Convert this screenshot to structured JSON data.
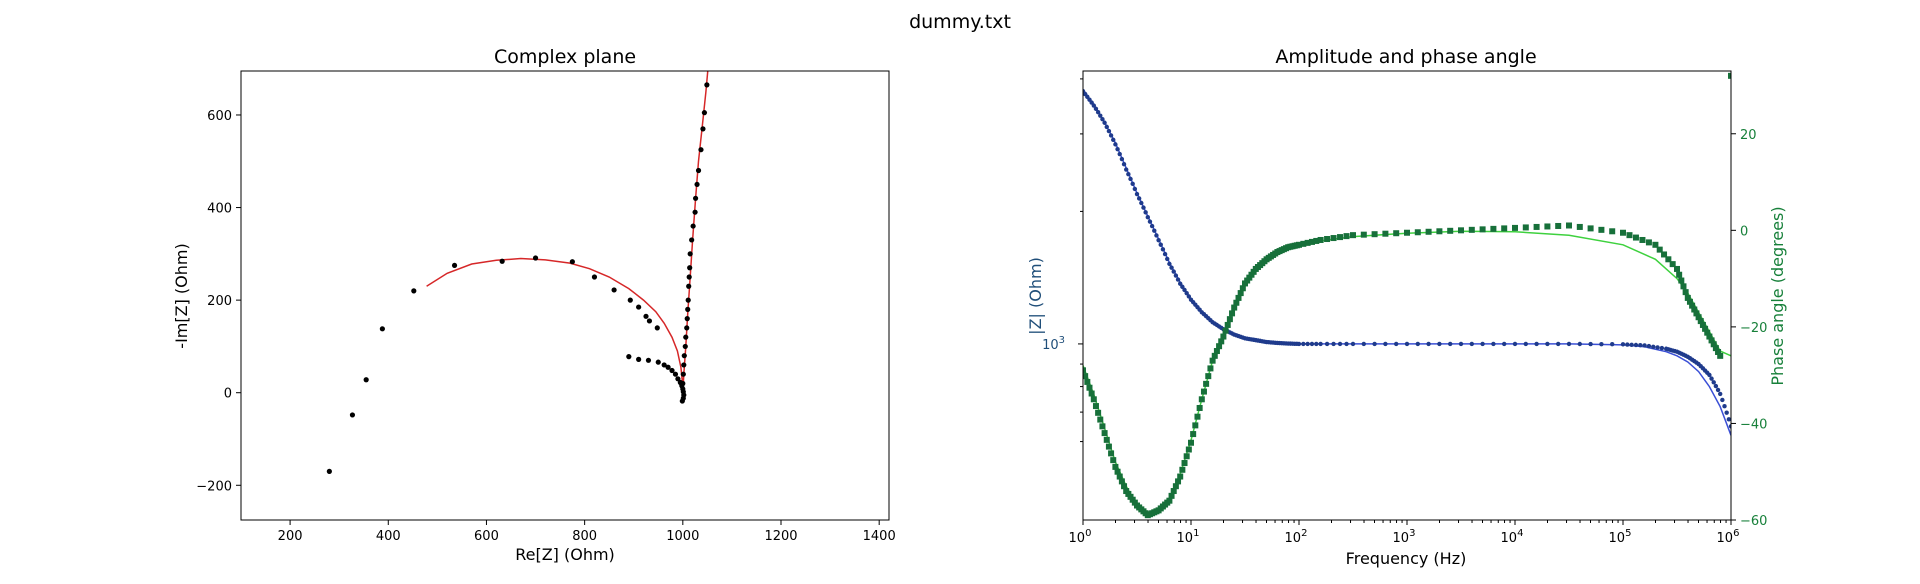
{
  "figure": {
    "suptitle": "dummy.txt"
  },
  "colors": {
    "data_points": "#000000",
    "fit_line": "#d62728",
    "amplitude_points": "#1f3b8c",
    "amplitude_line": "#3a4fd6",
    "amplitude_label": "#1f4e79",
    "phase_points": "#17703a",
    "phase_line": "#3ed13e",
    "phase_label": "#17803a"
  },
  "chart_data": [
    {
      "id": "complex",
      "type": "scatter",
      "title": "Complex plane",
      "xlabel": "Re[Z] (Ohm)",
      "ylabel": "-Im[Z] (Ohm)",
      "xlim": [
        100,
        1420
      ],
      "ylim": [
        -275,
        695
      ],
      "xticks": [
        200,
        400,
        600,
        800,
        1000,
        1200,
        1400
      ],
      "yticks": [
        -200,
        0,
        200,
        400,
        600
      ],
      "grid": false,
      "series": [
        {
          "kind": "points",
          "points": [
            [
              280,
              -170
            ],
            [
              327,
              -48
            ],
            [
              355,
              28
            ],
            [
              388,
              138
            ],
            [
              452,
              220
            ],
            [
              535,
              275
            ],
            [
              632,
              284
            ],
            [
              700,
              291
            ],
            [
              775,
              283
            ],
            [
              820,
              250
            ],
            [
              860,
              222
            ],
            [
              893,
              200
            ],
            [
              910,
              185
            ],
            [
              925,
              165
            ],
            [
              932,
              155
            ],
            [
              948,
              140
            ],
            [
              890,
              78
            ],
            [
              910,
              72
            ],
            [
              930,
              70
            ],
            [
              950,
              66
            ],
            [
              962,
              60
            ],
            [
              970,
              55
            ],
            [
              978,
              48
            ],
            [
              985,
              40
            ],
            [
              990,
              30
            ],
            [
              995,
              22
            ],
            [
              998,
              15
            ],
            [
              1000,
              8
            ],
            [
              1001,
              2
            ],
            [
              1002,
              -5
            ],
            [
              1001,
              -12
            ],
            [
              999,
              -18
            ],
            [
              1000,
              20
            ],
            [
              1001,
              40
            ],
            [
              1002,
              60
            ],
            [
              1003,
              80
            ],
            [
              1005,
              100
            ],
            [
              1006,
              120
            ],
            [
              1008,
              140
            ],
            [
              1009,
              160
            ],
            [
              1010,
              180
            ],
            [
              1011,
              200
            ],
            [
              1012,
              230
            ],
            [
              1013,
              250
            ],
            [
              1014,
              270
            ],
            [
              1015,
              300
            ],
            [
              1018,
              330
            ],
            [
              1021,
              360
            ],
            [
              1025,
              390
            ],
            [
              1026,
              420
            ],
            [
              1029,
              450
            ],
            [
              1032,
              480
            ],
            [
              1037,
              525
            ],
            [
              1041,
              570
            ],
            [
              1044,
              605
            ],
            [
              1049,
              665
            ]
          ]
        },
        {
          "kind": "line",
          "points": [
            [
              478,
              230
            ],
            [
              520,
              258
            ],
            [
              570,
              278
            ],
            [
              620,
              286
            ],
            [
              670,
              290
            ],
            [
              720,
              287
            ],
            [
              770,
              280
            ],
            [
              810,
              268
            ],
            [
              850,
              250
            ],
            [
              890,
              225
            ],
            [
              920,
              200
            ],
            [
              945,
              175
            ],
            [
              962,
              150
            ],
            [
              978,
              120
            ],
            [
              989,
              90
            ],
            [
              996,
              55
            ],
            [
              999,
              25
            ],
            [
              1000,
              0
            ],
            [
              1002,
              40
            ],
            [
              1006,
              100
            ],
            [
              1010,
              170
            ],
            [
              1015,
              250
            ],
            [
              1020,
              330
            ],
            [
              1026,
              420
            ],
            [
              1032,
              500
            ],
            [
              1040,
              580
            ],
            [
              1047,
              650
            ],
            [
              1053,
              720
            ]
          ]
        }
      ]
    },
    {
      "id": "bode",
      "type": "line",
      "title": "Amplitude and phase angle",
      "xlabel": "Frequency (Hz)",
      "ylabel": "|Z| (Ohm)",
      "y2label": "Phase angle (degrees)",
      "xscale": "log",
      "xlim": [
        1,
        1000000
      ],
      "xticks": [
        "10^0",
        "10^1",
        "10^2",
        "10^3",
        "10^4",
        "10^5",
        "10^6"
      ],
      "ylim": [
        1.35,
        3.8
      ],
      "yscale": "log",
      "yticks": [
        "10^3"
      ],
      "y2lim": [
        -60,
        33
      ],
      "y2ticks": [
        -60,
        -40,
        -20,
        0,
        20
      ],
      "grid": false,
      "amplitude": {
        "log10_f": [
          0,
          0.1,
          0.2,
          0.3,
          0.4,
          0.5,
          0.6,
          0.7,
          0.8,
          0.9,
          1.0,
          1.1,
          1.2,
          1.3,
          1.4,
          1.5,
          1.6,
          1.7,
          1.8,
          1.9,
          2.0,
          2.2,
          2.5,
          3.0,
          3.5,
          4.0,
          4.5,
          5.0,
          5.2,
          5.4,
          5.5,
          5.6,
          5.7,
          5.8,
          5.9,
          6.0
        ],
        "magnitude_ohm": [
          3750,
          3480,
          3180,
          2840,
          2490,
          2190,
          1940,
          1720,
          1520,
          1370,
          1260,
          1180,
          1120,
          1080,
          1050,
          1030,
          1020,
          1010,
          1005,
          1002,
          1000,
          1000,
          1000,
          1000,
          1000,
          1000,
          1000,
          998,
          992,
          975,
          960,
          935,
          900,
          850,
          770,
          650
        ],
        "fit_magnitude_ohm": [
          3780,
          3500,
          3190,
          2860,
          2510,
          2200,
          1950,
          1730,
          1530,
          1380,
          1265,
          1180,
          1120,
          1080,
          1050,
          1030,
          1020,
          1010,
          1005,
          1002,
          1000,
          1000,
          1000,
          1000,
          1000,
          1000,
          1000,
          995,
          985,
          960,
          940,
          910,
          865,
          800,
          720,
          620
        ]
      },
      "phase": {
        "log10_f": [
          0,
          0.1,
          0.2,
          0.3,
          0.4,
          0.5,
          0.6,
          0.7,
          0.8,
          0.9,
          1.0,
          1.1,
          1.2,
          1.3,
          1.4,
          1.5,
          1.6,
          1.7,
          1.8,
          1.9,
          2.0,
          2.2,
          2.5,
          3.0,
          3.5,
          4.0,
          4.5,
          5.0,
          5.3,
          5.5,
          5.6,
          5.7,
          5.8,
          5.9,
          6.0
        ],
        "angle_deg": [
          -29,
          -35,
          -42,
          -49,
          -54,
          -57,
          -59,
          -58,
          -56,
          -51,
          -44,
          -35,
          -27,
          -22,
          -16,
          -11,
          -8,
          -6,
          -4.5,
          -3.5,
          -3,
          -2,
          -1,
          -0.5,
          0,
          0.5,
          1,
          -0.5,
          -3,
          -8,
          -14,
          -18,
          -22,
          -26,
          32
        ],
        "fit_angle_deg": [
          -28,
          -34,
          -41,
          -48,
          -53,
          -57,
          -58.5,
          -58,
          -55.5,
          -50.5,
          -43.5,
          -35,
          -27,
          -21.5,
          -16,
          -11.5,
          -8.5,
          -6.5,
          -5,
          -4,
          -3.2,
          -2.2,
          -1.3,
          -0.6,
          -0.2,
          -0.3,
          -1,
          -3,
          -6,
          -10,
          -13,
          -17,
          -21,
          -25,
          -26
        ]
      }
    }
  ]
}
